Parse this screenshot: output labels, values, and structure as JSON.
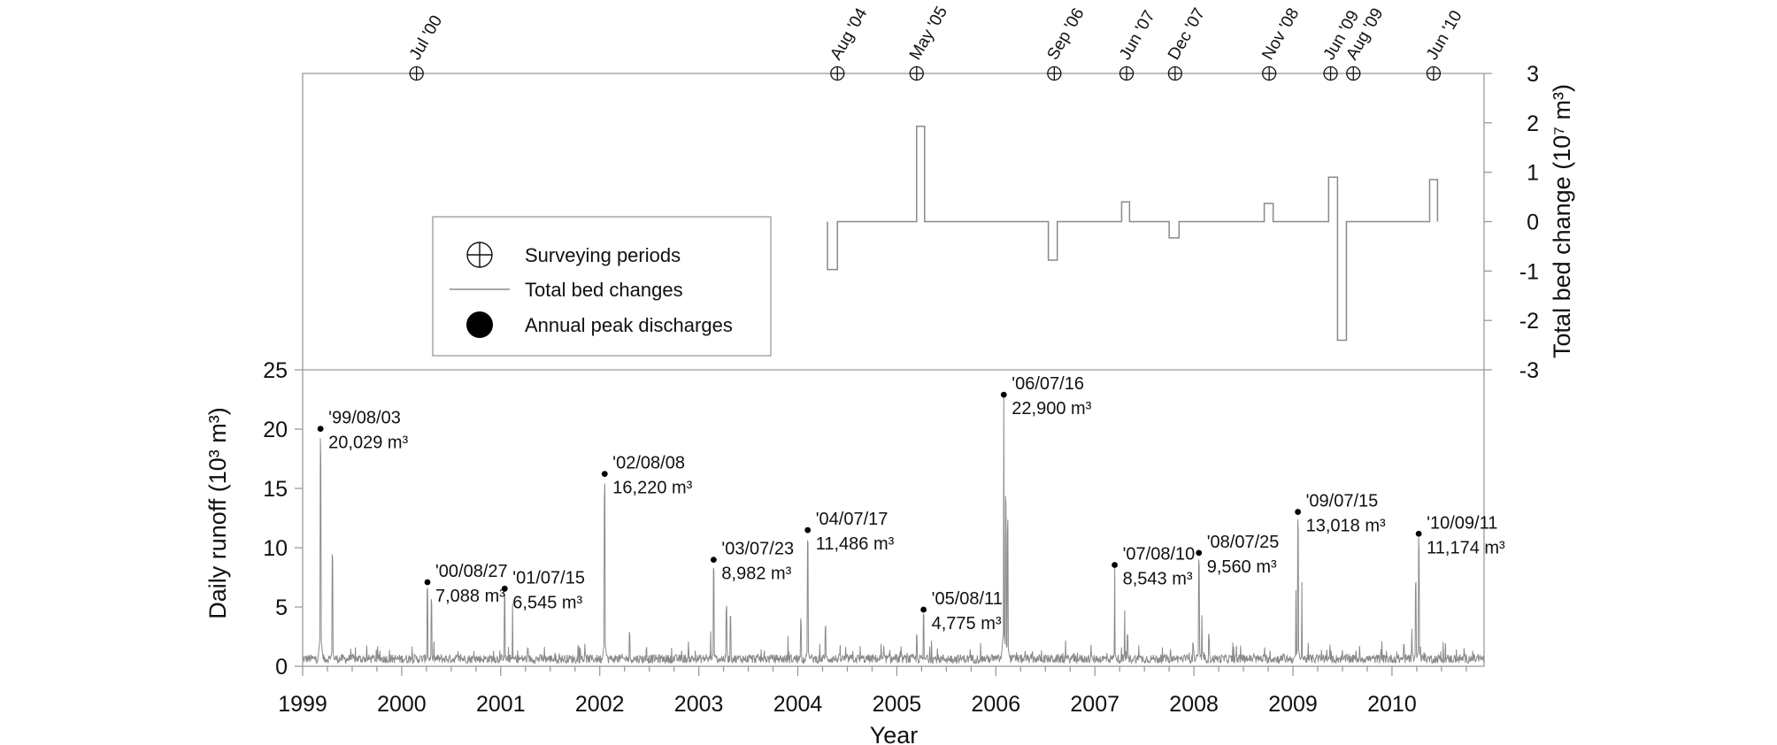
{
  "chart_data": [
    {
      "type": "line",
      "panel": "bed-change",
      "ylabel": "Total bed change (10⁷ m³)",
      "ylim": [
        -3,
        3
      ],
      "yticks": [
        3,
        2,
        1,
        0,
        -1,
        -2,
        -3
      ],
      "survey_periods": [
        {
          "label": "Jul '00",
          "x": 2000.15
        },
        {
          "label": "Aug '04",
          "x": 2004.4
        },
        {
          "label": "May '05",
          "x": 2005.2
        },
        {
          "label": "Sep '06",
          "x": 2006.59
        },
        {
          "label": "Jun '07",
          "x": 2007.32
        },
        {
          "label": "Dec '07",
          "x": 2007.81
        },
        {
          "label": "Nov '08",
          "x": 2008.76
        },
        {
          "label": "Jun '09",
          "x": 2009.38
        },
        {
          "label": "Aug '09",
          "x": 2009.61
        },
        {
          "label": "Jun '10",
          "x": 2010.42
        }
      ],
      "bed_change_segments": [
        {
          "x0": 2004.3,
          "x1": 2004.4,
          "y": -0.97
        },
        {
          "x0": 2004.4,
          "x1": 2005.2,
          "y": 0
        },
        {
          "x0": 2005.2,
          "x1": 2005.28,
          "y": 1.93
        },
        {
          "x0": 2005.28,
          "x1": 2006.53,
          "y": 0
        },
        {
          "x0": 2006.53,
          "x1": 2006.62,
          "y": -0.78
        },
        {
          "x0": 2006.62,
          "x1": 2007.27,
          "y": 0
        },
        {
          "x0": 2007.27,
          "x1": 2007.35,
          "y": 0.4
        },
        {
          "x0": 2007.35,
          "x1": 2007.75,
          "y": 0
        },
        {
          "x0": 2007.75,
          "x1": 2007.85,
          "y": -0.33
        },
        {
          "x0": 2007.85,
          "x1": 2008.71,
          "y": 0
        },
        {
          "x0": 2008.71,
          "x1": 2008.8,
          "y": 0.37
        },
        {
          "x0": 2008.8,
          "x1": 2009.36,
          "y": 0
        },
        {
          "x0": 2009.36,
          "x1": 2009.45,
          "y": 0.9
        },
        {
          "x0": 2009.45,
          "x1": 2009.54,
          "y": -2.4
        },
        {
          "x0": 2009.54,
          "x1": 2010.38,
          "y": 0
        },
        {
          "x0": 2010.38,
          "x1": 2010.46,
          "y": 0.85
        }
      ]
    },
    {
      "type": "line",
      "panel": "daily-runoff",
      "xlabel": "Year",
      "ylabel": "Daily runoff (10³ m³)",
      "xlim": [
        1999,
        2010.93
      ],
      "ylim": [
        0,
        25
      ],
      "xticks": [
        1999,
        2000,
        2001,
        2002,
        2003,
        2004,
        2005,
        2006,
        2007,
        2008,
        2009,
        2010
      ],
      "yticks": [
        0,
        5,
        10,
        15,
        20,
        25
      ],
      "secondary_peaks": [
        {
          "x": 1999.3,
          "y": 10.1
        },
        {
          "x": 2000.3,
          "y": 6.0
        },
        {
          "x": 2001.12,
          "y": 5.3
        },
        {
          "x": 2002.3,
          "y": 3.0
        },
        {
          "x": 2003.28,
          "y": 5.3
        },
        {
          "x": 2003.32,
          "y": 4.6
        },
        {
          "x": 2003.12,
          "y": 3.0
        },
        {
          "x": 2003.9,
          "y": 2.6
        },
        {
          "x": 2004.03,
          "y": 4.2
        },
        {
          "x": 2004.28,
          "y": 3.6
        },
        {
          "x": 2005.2,
          "y": 2.8
        },
        {
          "x": 2005.35,
          "y": 2.2
        },
        {
          "x": 2006.1,
          "y": 15.3
        },
        {
          "x": 2006.12,
          "y": 13.0
        },
        {
          "x": 2007.3,
          "y": 4.8
        },
        {
          "x": 2007.33,
          "y": 2.9
        },
        {
          "x": 2007.99,
          "y": 2.1
        },
        {
          "x": 2008.08,
          "y": 4.4
        },
        {
          "x": 2008.15,
          "y": 2.8
        },
        {
          "x": 2009.03,
          "y": 6.5
        },
        {
          "x": 2009.09,
          "y": 7.1
        },
        {
          "x": 2010.2,
          "y": 3.2
        },
        {
          "x": 2010.24,
          "y": 7.6
        },
        {
          "x": 2010.12,
          "y": 2.0
        }
      ],
      "annual_peaks": [
        {
          "x": 1999.18,
          "y": 20.029,
          "date": "'99/08/03",
          "volume": "20,029 m³"
        },
        {
          "x": 2000.26,
          "y": 7.088,
          "date": "'00/08/27",
          "volume": "7,088 m³"
        },
        {
          "x": 2001.04,
          "y": 6.545,
          "date": "'01/07/15",
          "volume": "6,545 m³"
        },
        {
          "x": 2002.05,
          "y": 16.22,
          "date": "'02/08/08",
          "volume": "16,220 m³"
        },
        {
          "x": 2003.15,
          "y": 8.982,
          "date": "'03/07/23",
          "volume": "8,982 m³"
        },
        {
          "x": 2004.1,
          "y": 11.486,
          "date": "'04/07/17",
          "volume": "11,486 m³"
        },
        {
          "x": 2005.27,
          "y": 4.775,
          "date": "'05/08/11",
          "volume": "4,775 m³"
        },
        {
          "x": 2006.08,
          "y": 22.9,
          "date": "'06/07/16",
          "volume": "22,900 m³"
        },
        {
          "x": 2007.2,
          "y": 8.543,
          "date": "'07/08/10",
          "volume": "8,543 m³"
        },
        {
          "x": 2008.05,
          "y": 9.56,
          "date": "'08/07/25",
          "volume": "9,560 m³"
        },
        {
          "x": 2009.05,
          "y": 13.018,
          "date": "'09/07/15",
          "volume": "13,018 m³"
        },
        {
          "x": 2010.27,
          "y": 11.174,
          "date": "'10/09/11",
          "volume": "11,174 m³"
        }
      ]
    }
  ],
  "legend": {
    "survey_label": "Surveying periods",
    "bed_label": "Total bed changes",
    "peak_label": "Annual peak discharges"
  },
  "colors": {
    "axis": "#9a9a9a",
    "series_line": "#8a8a8a",
    "marker": "#000000",
    "text": "#111111"
  }
}
